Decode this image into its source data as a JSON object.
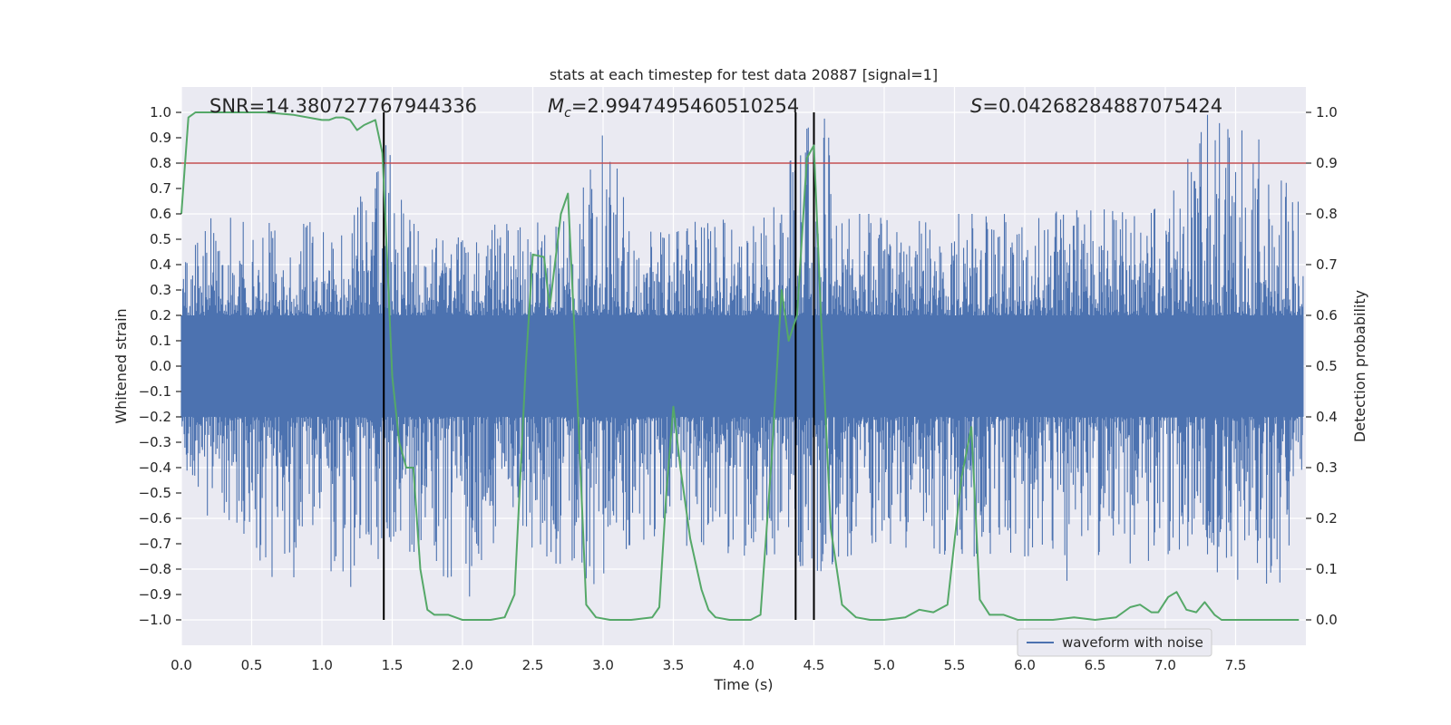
{
  "chart_data": {
    "type": "line",
    "title": "stats at each timestep for test data 20887 [signal=1]",
    "xlabel": "Time (s)",
    "ylabel_left": "Whitened strain",
    "ylabel_right": "Detection probability",
    "xlim": [
      0,
      8
    ],
    "ylim_left": [
      -1.1,
      1.1
    ],
    "ylim_right": [
      -0.05,
      1.05
    ],
    "grid": true,
    "legend": {
      "placement": "lower-right",
      "entries": [
        "waveform with noise"
      ]
    },
    "x_ticks": [
      "0.0",
      "0.5",
      "1.0",
      "1.5",
      "2.0",
      "2.5",
      "3.0",
      "3.5",
      "4.0",
      "4.5",
      "5.0",
      "5.5",
      "6.0",
      "6.5",
      "7.0",
      "7.5"
    ],
    "x_tick_values": [
      0,
      0.5,
      1,
      1.5,
      2,
      2.5,
      3,
      3.5,
      4,
      4.5,
      5,
      5.5,
      6,
      6.5,
      7,
      7.5
    ],
    "y_ticks_left": [
      "1.0",
      "0.9",
      "0.8",
      "0.7",
      "0.6",
      "0.5",
      "0.4",
      "0.3",
      "0.2",
      "0.1",
      "0.0",
      "−0.1",
      "−0.2",
      "−0.3",
      "−0.4",
      "−0.5",
      "−0.6",
      "−0.7",
      "−0.8",
      "−0.9",
      "−1.0"
    ],
    "y_tick_values_left": [
      1.0,
      0.9,
      0.8,
      0.7,
      0.6,
      0.5,
      0.4,
      0.3,
      0.2,
      0.1,
      0.0,
      -0.1,
      -0.2,
      -0.3,
      -0.4,
      -0.5,
      -0.6,
      -0.7,
      -0.8,
      -0.9,
      -1.0
    ],
    "y_ticks_right": [
      "1.0",
      "0.9",
      "0.8",
      "0.7",
      "0.6",
      "0.5",
      "0.4",
      "0.3",
      "0.2",
      "0.1",
      "0.0"
    ],
    "y_tick_values_right": [
      1.0,
      0.9,
      0.8,
      0.7,
      0.6,
      0.5,
      0.4,
      0.3,
      0.2,
      0.1,
      0.0
    ],
    "annotations": {
      "snr": "SNR=14.380727767944336",
      "mc_symbol": "M",
      "mc_subscript": "c",
      "mc_value": "=2.9947495460510254",
      "s_symbol": "S",
      "s_value": "=0.04268284887075424"
    },
    "threshold_line": {
      "y_right": 0.9,
      "color": "#c44e52"
    },
    "vertical_lines_x": [
      1.44,
      4.37,
      4.5
    ],
    "series": [
      {
        "name": "waveform with noise",
        "axis": "left",
        "color": "#4c72b0",
        "envelope_top": [
          [
            0,
            0.35
          ],
          [
            0.1,
            0.55
          ],
          [
            0.2,
            0.6
          ],
          [
            0.4,
            0.58
          ],
          [
            0.6,
            0.6
          ],
          [
            0.8,
            0.55
          ],
          [
            1.0,
            0.58
          ],
          [
            1.2,
            0.55
          ],
          [
            1.44,
            0.93
          ],
          [
            1.6,
            0.58
          ],
          [
            1.8,
            0.55
          ],
          [
            2.0,
            0.52
          ],
          [
            2.2,
            0.55
          ],
          [
            2.4,
            0.6
          ],
          [
            2.6,
            0.55
          ],
          [
            2.8,
            0.6
          ],
          [
            3.0,
            0.97
          ],
          [
            3.2,
            0.6
          ],
          [
            3.5,
            0.55
          ],
          [
            3.8,
            0.6
          ],
          [
            4.0,
            0.58
          ],
          [
            4.2,
            0.6
          ],
          [
            4.4,
            0.95
          ],
          [
            4.6,
            0.99
          ],
          [
            4.8,
            0.6
          ],
          [
            5.0,
            0.6
          ],
          [
            5.5,
            0.6
          ],
          [
            6.0,
            0.6
          ],
          [
            6.5,
            0.62
          ],
          [
            7.0,
            0.62
          ],
          [
            7.3,
            0.99
          ],
          [
            7.6,
            0.95
          ],
          [
            8.0,
            0.6
          ]
        ],
        "envelope_bottom": [
          [
            0,
            -0.45
          ],
          [
            0.2,
            -0.6
          ],
          [
            0.5,
            -0.7
          ],
          [
            0.7,
            -0.92
          ],
          [
            1.0,
            -0.7
          ],
          [
            1.15,
            -0.95
          ],
          [
            1.44,
            -0.73
          ],
          [
            1.8,
            -0.75
          ],
          [
            2.0,
            -0.99
          ],
          [
            2.3,
            -0.65
          ],
          [
            2.6,
            -0.75
          ],
          [
            2.9,
            -0.88
          ],
          [
            3.2,
            -0.7
          ],
          [
            3.5,
            -0.7
          ],
          [
            4.0,
            -0.75
          ],
          [
            4.35,
            -0.77
          ],
          [
            4.5,
            -0.82
          ],
          [
            5.0,
            -0.7
          ],
          [
            5.5,
            -0.75
          ],
          [
            6.0,
            -0.75
          ],
          [
            6.3,
            -0.86
          ],
          [
            6.9,
            -0.78
          ],
          [
            7.3,
            -0.8
          ],
          [
            7.8,
            -0.9
          ],
          [
            8.0,
            -0.7
          ]
        ]
      },
      {
        "name": "",
        "axis": "right",
        "color": "#55a868",
        "points": [
          [
            0.0,
            0.8
          ],
          [
            0.05,
            0.99
          ],
          [
            0.1,
            1.0
          ],
          [
            0.2,
            1.0
          ],
          [
            0.4,
            1.0
          ],
          [
            0.6,
            1.0
          ],
          [
            0.8,
            0.995
          ],
          [
            1.0,
            0.985
          ],
          [
            1.05,
            0.985
          ],
          [
            1.1,
            0.99
          ],
          [
            1.15,
            0.99
          ],
          [
            1.2,
            0.985
          ],
          [
            1.25,
            0.965
          ],
          [
            1.3,
            0.975
          ],
          [
            1.38,
            0.985
          ],
          [
            1.43,
            0.92
          ],
          [
            1.45,
            0.8
          ],
          [
            1.5,
            0.48
          ],
          [
            1.55,
            0.35
          ],
          [
            1.6,
            0.3
          ],
          [
            1.65,
            0.3
          ],
          [
            1.7,
            0.1
          ],
          [
            1.75,
            0.02
          ],
          [
            1.8,
            0.01
          ],
          [
            1.9,
            0.01
          ],
          [
            2.0,
            0.0
          ],
          [
            2.1,
            0.0
          ],
          [
            2.2,
            0.0
          ],
          [
            2.3,
            0.005
          ],
          [
            2.37,
            0.05
          ],
          [
            2.45,
            0.5
          ],
          [
            2.5,
            0.72
          ],
          [
            2.58,
            0.715
          ],
          [
            2.62,
            0.615
          ],
          [
            2.7,
            0.8
          ],
          [
            2.75,
            0.84
          ],
          [
            2.8,
            0.55
          ],
          [
            2.88,
            0.03
          ],
          [
            2.95,
            0.005
          ],
          [
            3.05,
            0.0
          ],
          [
            3.2,
            0.0
          ],
          [
            3.35,
            0.005
          ],
          [
            3.4,
            0.025
          ],
          [
            3.45,
            0.25
          ],
          [
            3.5,
            0.42
          ],
          [
            3.55,
            0.3
          ],
          [
            3.62,
            0.16
          ],
          [
            3.7,
            0.06
          ],
          [
            3.75,
            0.02
          ],
          [
            3.8,
            0.005
          ],
          [
            3.9,
            0.0
          ],
          [
            4.05,
            0.0
          ],
          [
            4.12,
            0.01
          ],
          [
            4.2,
            0.32
          ],
          [
            4.27,
            0.65
          ],
          [
            4.32,
            0.55
          ],
          [
            4.38,
            0.6
          ],
          [
            4.45,
            0.91
          ],
          [
            4.5,
            0.935
          ],
          [
            4.55,
            0.6
          ],
          [
            4.62,
            0.18
          ],
          [
            4.7,
            0.03
          ],
          [
            4.8,
            0.005
          ],
          [
            4.9,
            0.0
          ],
          [
            5.0,
            0.0
          ],
          [
            5.15,
            0.005
          ],
          [
            5.25,
            0.02
          ],
          [
            5.35,
            0.015
          ],
          [
            5.45,
            0.03
          ],
          [
            5.55,
            0.28
          ],
          [
            5.62,
            0.38
          ],
          [
            5.68,
            0.04
          ],
          [
            5.75,
            0.01
          ],
          [
            5.85,
            0.01
          ],
          [
            5.95,
            0.0
          ],
          [
            6.2,
            0.0
          ],
          [
            6.35,
            0.005
          ],
          [
            6.5,
            0.0
          ],
          [
            6.65,
            0.005
          ],
          [
            6.75,
            0.025
          ],
          [
            6.82,
            0.03
          ],
          [
            6.9,
            0.015
          ],
          [
            6.95,
            0.015
          ],
          [
            7.02,
            0.045
          ],
          [
            7.08,
            0.055
          ],
          [
            7.15,
            0.02
          ],
          [
            7.22,
            0.015
          ],
          [
            7.28,
            0.035
          ],
          [
            7.35,
            0.01
          ],
          [
            7.4,
            0.0
          ],
          [
            7.6,
            0.0
          ],
          [
            7.8,
            0.0
          ],
          [
            7.95,
            0.0
          ]
        ]
      }
    ]
  }
}
